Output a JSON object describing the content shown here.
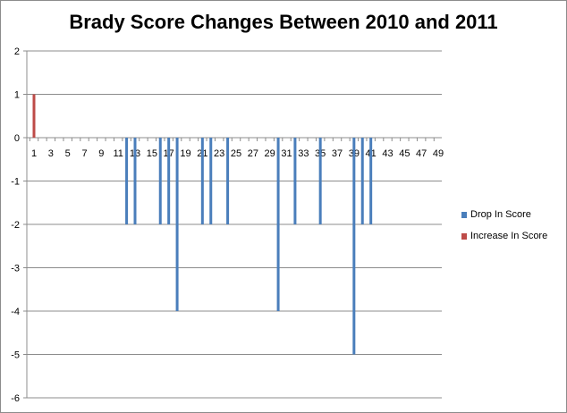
{
  "chart_data": {
    "type": "bar",
    "title": "Brady Score Changes Between 2010 and 2011",
    "xlabel": "",
    "ylabel": "",
    "ylim": [
      -6,
      2
    ],
    "yticks": [
      2,
      1,
      0,
      -1,
      -2,
      -3,
      -4,
      -5,
      -6
    ],
    "xlim": [
      1,
      49
    ],
    "xtick_labels": [
      "1",
      "3",
      "5",
      "7",
      "9",
      "11",
      "13",
      "15",
      "17",
      "19",
      "21",
      "23",
      "25",
      "27",
      "29",
      "31",
      "33",
      "35",
      "37",
      "39",
      "41",
      "43",
      "45",
      "47",
      "49"
    ],
    "grid": "horizontal",
    "legend_position": "right",
    "series": [
      {
        "name": "Drop In Score",
        "color": "#4a7ebb",
        "points": [
          {
            "x": 12,
            "y": -2
          },
          {
            "x": 13,
            "y": -2
          },
          {
            "x": 16,
            "y": -2
          },
          {
            "x": 17,
            "y": -2
          },
          {
            "x": 18,
            "y": -4
          },
          {
            "x": 21,
            "y": -2
          },
          {
            "x": 22,
            "y": -2
          },
          {
            "x": 24,
            "y": -2
          },
          {
            "x": 30,
            "y": -4
          },
          {
            "x": 32,
            "y": -2
          },
          {
            "x": 35,
            "y": -2
          },
          {
            "x": 39,
            "y": -5
          },
          {
            "x": 40,
            "y": -2
          },
          {
            "x": 41,
            "y": -2
          }
        ]
      },
      {
        "name": "Increase In Score",
        "color": "#be4b48",
        "points": [
          {
            "x": 1,
            "y": 1
          }
        ]
      }
    ]
  }
}
